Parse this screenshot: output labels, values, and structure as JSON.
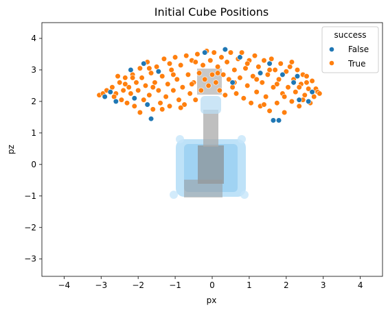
{
  "chart_data": {
    "type": "scatter",
    "title": "Initial Cube Positions",
    "xlabel": "px",
    "ylabel": "pz",
    "xlim": [
      -4.6,
      4.6
    ],
    "ylim": [
      -3.55,
      4.5
    ],
    "xticks": [
      -4,
      -3,
      -2,
      -1,
      0,
      1,
      2,
      3,
      4
    ],
    "yticks": [
      -3,
      -2,
      -1,
      0,
      1,
      2,
      3,
      4
    ],
    "xtick_labels": [
      "−4",
      "−3",
      "−2",
      "−1",
      "0",
      "1",
      "2",
      "3",
      "4"
    ],
    "ytick_labels": [
      "−3",
      "−2",
      "−1",
      "0",
      "1",
      "2",
      "3",
      "4"
    ],
    "grid": false,
    "legend": {
      "title": "success",
      "position": "top-right",
      "entries": [
        {
          "label": "False",
          "color": "#1f77b4"
        },
        {
          "label": "True",
          "color": "#ff7f0e"
        }
      ]
    },
    "series": [
      {
        "name": "False",
        "color": "#1f77b4",
        "points": [
          [
            -2.9,
            2.15
          ],
          [
            -2.75,
            2.3
          ],
          [
            -2.6,
            2.0
          ],
          [
            -2.2,
            3.0
          ],
          [
            -2.1,
            2.1
          ],
          [
            -1.85,
            3.2
          ],
          [
            -1.75,
            1.9
          ],
          [
            -1.65,
            1.45
          ],
          [
            -1.45,
            2.95
          ],
          [
            -0.2,
            3.55
          ],
          [
            0.35,
            3.65
          ],
          [
            0.55,
            2.6
          ],
          [
            0.75,
            3.4
          ],
          [
            1.3,
            2.9
          ],
          [
            1.55,
            3.2
          ],
          [
            1.65,
            1.4
          ],
          [
            1.8,
            1.4
          ],
          [
            1.9,
            2.85
          ],
          [
            2.2,
            2.6
          ],
          [
            2.3,
            2.8
          ],
          [
            2.35,
            2.05
          ],
          [
            2.6,
            2.0
          ],
          [
            2.7,
            2.3
          ]
        ]
      },
      {
        "name": "True",
        "color": "#ff7f0e",
        "points": [
          [
            -3.05,
            2.2
          ],
          [
            -2.95,
            2.25
          ],
          [
            -2.85,
            2.35
          ],
          [
            -2.7,
            2.45
          ],
          [
            -2.6,
            2.25
          ],
          [
            -2.5,
            2.6
          ],
          [
            -2.45,
            2.05
          ],
          [
            -2.4,
            2.35
          ],
          [
            -2.35,
            2.75
          ],
          [
            -2.3,
            1.95
          ],
          [
            -2.25,
            2.45
          ],
          [
            -2.2,
            2.25
          ],
          [
            -2.15,
            2.85
          ],
          [
            -2.1,
            1.85
          ],
          [
            -2.05,
            2.6
          ],
          [
            -2.0,
            2.35
          ],
          [
            -1.95,
            3.05
          ],
          [
            -1.9,
            2.75
          ],
          [
            -1.85,
            2.05
          ],
          [
            -1.8,
            2.5
          ],
          [
            -1.75,
            3.25
          ],
          [
            -1.7,
            2.2
          ],
          [
            -1.65,
            2.9
          ],
          [
            -1.6,
            1.75
          ],
          [
            -1.55,
            2.6
          ],
          [
            -1.5,
            3.1
          ],
          [
            -1.45,
            2.35
          ],
          [
            -1.4,
            1.95
          ],
          [
            -1.35,
            2.8
          ],
          [
            -1.3,
            3.35
          ],
          [
            -1.25,
            2.15
          ],
          [
            -1.2,
            2.55
          ],
          [
            -1.15,
            1.85
          ],
          [
            -1.1,
            3.0
          ],
          [
            -1.05,
            2.35
          ],
          [
            -1.0,
            3.4
          ],
          [
            -0.95,
            2.7
          ],
          [
            -0.9,
            2.05
          ],
          [
            -0.85,
            3.15
          ],
          [
            -0.8,
            2.45
          ],
          [
            -0.75,
            1.9
          ],
          [
            -0.7,
            3.45
          ],
          [
            -0.65,
            2.85
          ],
          [
            -0.6,
            2.25
          ],
          [
            -0.55,
            3.3
          ],
          [
            -0.5,
            2.6
          ],
          [
            -0.45,
            2.05
          ],
          [
            -0.4,
            3.5
          ],
          [
            -0.35,
            2.9
          ],
          [
            -0.3,
            2.35
          ],
          [
            -0.25,
            3.15
          ],
          [
            -0.2,
            2.7
          ],
          [
            -0.15,
            3.6
          ],
          [
            -0.1,
            2.5
          ],
          [
            -0.05,
            3.3
          ],
          [
            0.0,
            2.85
          ],
          [
            0.05,
            3.55
          ],
          [
            0.1,
            2.6
          ],
          [
            0.15,
            3.1
          ],
          [
            0.2,
            2.35
          ],
          [
            0.25,
            3.4
          ],
          [
            0.3,
            2.85
          ],
          [
            0.35,
            2.2
          ],
          [
            0.4,
            3.25
          ],
          [
            0.45,
            2.7
          ],
          [
            0.5,
            3.55
          ],
          [
            0.55,
            2.45
          ],
          [
            0.6,
            3.0
          ],
          [
            0.65,
            2.25
          ],
          [
            0.7,
            3.35
          ],
          [
            0.75,
            2.75
          ],
          [
            0.8,
            3.55
          ],
          [
            0.85,
            2.1
          ],
          [
            0.9,
            3.05
          ],
          [
            0.95,
            2.5
          ],
          [
            1.0,
            3.3
          ],
          [
            1.05,
            1.95
          ],
          [
            1.1,
            2.8
          ],
          [
            1.15,
            3.45
          ],
          [
            1.2,
            2.3
          ],
          [
            1.25,
            3.1
          ],
          [
            1.3,
            1.85
          ],
          [
            1.35,
            2.6
          ],
          [
            1.4,
            3.3
          ],
          [
            1.45,
            2.15
          ],
          [
            1.5,
            2.85
          ],
          [
            1.55,
            1.7
          ],
          [
            1.6,
            3.35
          ],
          [
            1.65,
            2.45
          ],
          [
            1.7,
            3.0
          ],
          [
            1.75,
            1.95
          ],
          [
            1.8,
            2.7
          ],
          [
            1.85,
            3.2
          ],
          [
            1.9,
            2.25
          ],
          [
            1.95,
            1.65
          ],
          [
            2.0,
            2.95
          ],
          [
            2.05,
            2.45
          ],
          [
            2.1,
            3.1
          ],
          [
            2.15,
            2.0
          ],
          [
            2.2,
            2.7
          ],
          [
            2.25,
            2.3
          ],
          [
            2.3,
            3.0
          ],
          [
            2.35,
            1.85
          ],
          [
            2.4,
            2.55
          ],
          [
            2.45,
            2.85
          ],
          [
            2.5,
            2.2
          ],
          [
            2.55,
            2.6
          ],
          [
            2.6,
            2.4
          ],
          [
            2.65,
            1.95
          ],
          [
            2.7,
            2.65
          ],
          [
            2.75,
            2.15
          ],
          [
            2.8,
            2.4
          ],
          [
            2.85,
            2.3
          ],
          [
            2.9,
            2.25
          ],
          [
            -2.65,
            2.15
          ],
          [
            -2.15,
            2.75
          ],
          [
            -1.6,
            2.45
          ],
          [
            -1.05,
            2.85
          ],
          [
            -0.55,
            2.55
          ],
          [
            0.15,
            2.9
          ],
          [
            0.6,
            2.6
          ],
          [
            1.2,
            2.7
          ],
          [
            1.75,
            2.55
          ],
          [
            2.35,
            2.45
          ],
          [
            -2.55,
            2.8
          ],
          [
            -1.95,
            1.65
          ],
          [
            -1.35,
            1.75
          ],
          [
            -0.85,
            1.8
          ],
          [
            1.4,
            1.9
          ],
          [
            1.95,
            2.15
          ],
          [
            2.55,
            2.8
          ],
          [
            -2.35,
            2.55
          ],
          [
            -1.7,
            3.05
          ],
          [
            -1.15,
            3.2
          ],
          [
            -0.45,
            3.25
          ],
          [
            0.95,
            3.2
          ],
          [
            1.55,
            3.0
          ],
          [
            2.15,
            3.25
          ],
          [
            2.45,
            2.05
          ]
        ]
      }
    ]
  }
}
